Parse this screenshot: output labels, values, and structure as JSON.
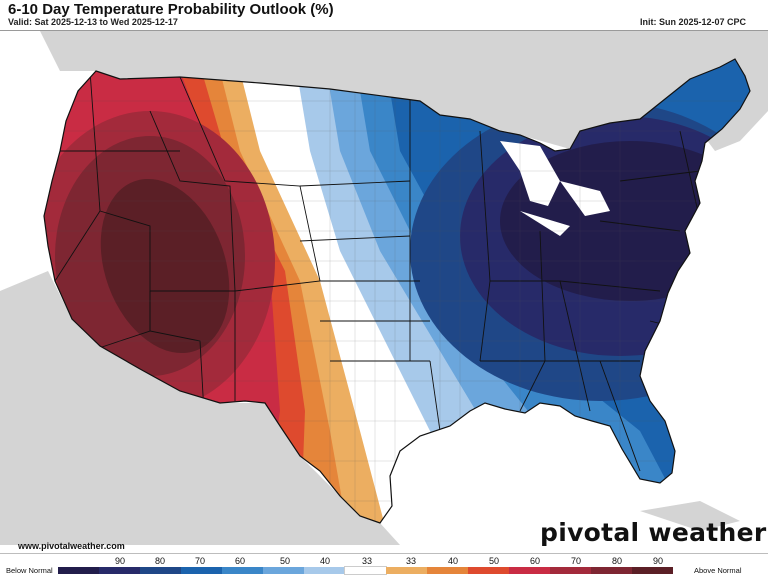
{
  "header": {
    "title": "6-10 Day Temperature Probability Outlook (%)",
    "valid": "Valid: Sat 2025-12-13 to Wed 2025-12-17",
    "init": "Init: Sun 2025-12-07 CPC"
  },
  "footer": {
    "url": "www.pivotalweather.com",
    "brand": "pivotal weather"
  },
  "legend": {
    "left_label": "Below Normal",
    "right_label": "Above Normal",
    "ticks": [
      "90",
      "80",
      "70",
      "60",
      "50",
      "40",
      "33",
      "33",
      "40",
      "50",
      "60",
      "70",
      "80",
      "90"
    ],
    "colors": [
      "#221d4b",
      "#272a69",
      "#1f4787",
      "#1b63ad",
      "#3a86c8",
      "#6ba6dc",
      "#a7c9ea",
      "#ffffff",
      "#ecae61",
      "#e5853a",
      "#de4a2e",
      "#c92c44",
      "#a32a3b",
      "#7e2632",
      "#5b1f26"
    ]
  },
  "map_colors": {
    "land_outside": "#d4d4d4",
    "water": "#ffffff"
  }
}
